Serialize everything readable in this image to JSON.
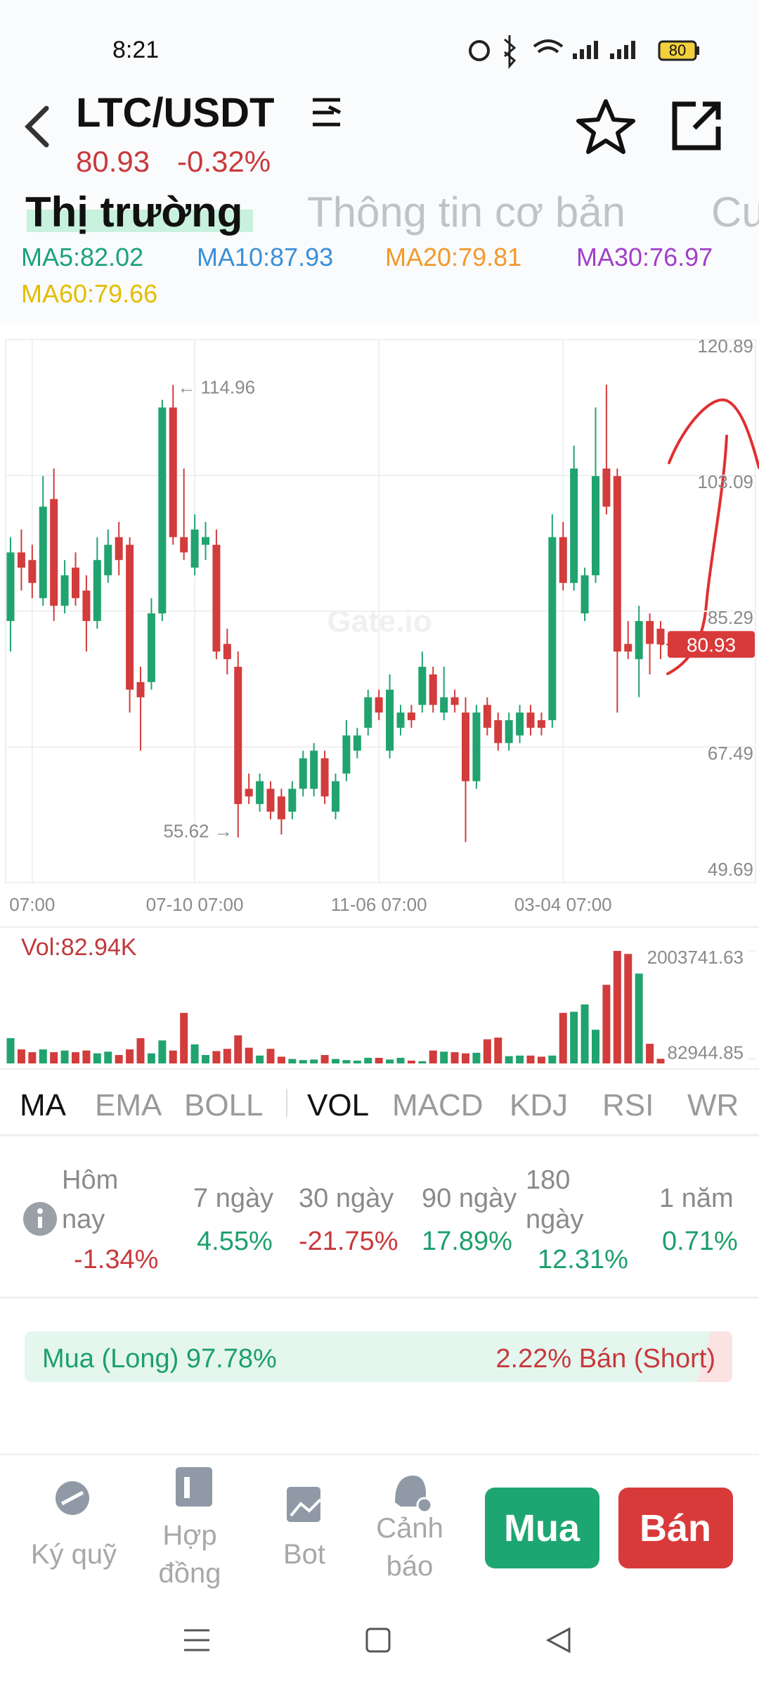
{
  "status": {
    "time": "8:21",
    "battery": "80"
  },
  "header": {
    "pair": "LTC/USDT",
    "price": "80.93",
    "change": "-0.32%"
  },
  "tabs": [
    "Thị trường",
    "Thông tin cơ bản",
    "Cu"
  ],
  "ma_legend": [
    {
      "text": "MA5:82.02",
      "color": "#1aa37a"
    },
    {
      "text": "MA10:87.93",
      "color": "#3a8fd8"
    },
    {
      "text": "MA20:79.81",
      "color": "#f09a2a"
    },
    {
      "text": "MA30:76.97",
      "color": "#a040c8"
    },
    {
      "text": "MA60:79.66",
      "color": "#e2bd00"
    }
  ],
  "chart_data": {
    "type": "candlestick",
    "watermark": "Gate.io",
    "ylim": [
      49.69,
      120.89
    ],
    "yticks": [
      49.69,
      67.49,
      85.29,
      103.09,
      120.89
    ],
    "grid": true,
    "up_color": "#21a36f",
    "down_color": "#d23c3c",
    "categories": [
      null,
      null,
      "07:00",
      null,
      null,
      null,
      null,
      null,
      null,
      null,
      null,
      null,
      null,
      null,
      null,
      null,
      null,
      "07-10 07:00",
      null,
      null,
      null,
      null,
      null,
      null,
      null,
      null,
      null,
      null,
      null,
      null,
      null,
      null,
      null,
      null,
      "11-06 07:00",
      null,
      null,
      null,
      null,
      null,
      null,
      null,
      null,
      null,
      null,
      null,
      null,
      null,
      null,
      null,
      null,
      "03-04 07:00",
      null,
      null,
      null,
      null,
      null,
      null,
      null,
      null,
      null
    ],
    "open": [
      84,
      93,
      92,
      87,
      100,
      86,
      91,
      88,
      84,
      90,
      95,
      94,
      76,
      76,
      85,
      112,
      95,
      91,
      94,
      94,
      81,
      78,
      62,
      60,
      62,
      61,
      59,
      62,
      62,
      66,
      59,
      64,
      67,
      70,
      74,
      67,
      70,
      72,
      73,
      77,
      72,
      74,
      72,
      63,
      73,
      71,
      68,
      69,
      72,
      71,
      71,
      95,
      89,
      85,
      90,
      104,
      103,
      81,
      79,
      84,
      83
    ],
    "high": [
      95,
      96,
      94,
      103,
      104,
      92,
      93,
      90,
      95,
      96,
      97,
      95,
      78,
      87,
      113,
      114.96,
      104,
      98,
      97,
      96,
      83,
      80,
      64,
      64,
      63,
      62,
      63,
      67,
      68,
      67,
      64,
      71,
      70,
      75,
      75,
      77,
      73,
      73,
      80,
      78,
      78,
      75,
      74,
      73,
      74,
      72,
      72,
      73,
      73,
      72,
      98,
      97,
      107,
      91,
      112,
      115,
      104,
      84,
      86,
      85,
      84
    ],
    "low": [
      80,
      88,
      87,
      86,
      84,
      85,
      86,
      80,
      83,
      89,
      90,
      72,
      67,
      75,
      84,
      94,
      92,
      90,
      92,
      79,
      77,
      55.62,
      60,
      59,
      58,
      56,
      58,
      61,
      61,
      60,
      58,
      63,
      66,
      69,
      71,
      66,
      69,
      70,
      72,
      72,
      71,
      72,
      55,
      62,
      69,
      67,
      67,
      68,
      69,
      69,
      70,
      88,
      88,
      84,
      89,
      98,
      72,
      79,
      74,
      77,
      79
    ],
    "close": [
      93,
      91,
      89,
      99,
      86,
      90,
      87,
      84,
      92,
      94,
      92,
      75,
      74,
      85,
      112,
      95,
      93,
      96,
      95,
      80,
      79,
      60,
      61,
      63,
      59,
      58,
      62,
      66,
      67,
      61,
      63,
      69,
      69,
      74,
      72,
      75,
      72,
      71,
      78,
      73,
      74,
      73,
      63,
      72,
      70,
      68,
      71,
      72,
      70,
      70,
      95,
      89,
      104,
      90,
      103,
      99,
      80,
      80,
      84,
      81,
      80.93
    ],
    "annotations": [
      {
        "index": 15,
        "label": "← 114.96"
      },
      {
        "index": 21,
        "label": "55.62 →"
      }
    ],
    "last_price": "80.93",
    "volume": {
      "label": "Vol:82.94K",
      "ylim": [
        0,
        2003741.63
      ],
      "yticks": [
        82944.85,
        2003741.63
      ],
      "values": [
        450000,
        250000,
        200000,
        250000,
        200000,
        230000,
        200000,
        230000,
        180000,
        210000,
        150000,
        250000,
        450000,
        180000,
        410000,
        230000,
        900000,
        340000,
        150000,
        220000,
        260000,
        500000,
        280000,
        140000,
        260000,
        120000,
        80000,
        60000,
        70000,
        150000,
        80000,
        60000,
        50000,
        100000,
        100000,
        70000,
        100000,
        50000,
        40000,
        230000,
        210000,
        200000,
        180000,
        190000,
        430000,
        460000,
        130000,
        140000,
        140000,
        120000,
        140000,
        900000,
        920000,
        1050000,
        600000,
        1400000,
        2003741.63,
        1950000,
        1600000,
        350000,
        82944.85
      ]
    }
  },
  "indicators": {
    "main": [
      "MA",
      "EMA",
      "BOLL"
    ],
    "sub": [
      "VOL",
      "MACD",
      "KDJ",
      "RSI",
      "WR"
    ]
  },
  "performance": [
    {
      "label": "Hôm nay",
      "value": "-1.34%"
    },
    {
      "label": "7 ngày",
      "value": "4.55%"
    },
    {
      "label": "30 ngày",
      "value": "-21.75%"
    },
    {
      "label": "90 ngày",
      "value": "17.89%"
    },
    {
      "label": "180 ngày",
      "value": "12.31%"
    },
    {
      "label": "1 năm",
      "value": "0.71%"
    }
  ],
  "long_short": {
    "long": "Mua (Long) 97.78%",
    "short": "2.22% Bán (Short)"
  },
  "bottom_nav": [
    "Ký quỹ",
    "Hợp đồng",
    "Bot",
    "Cảnh báo"
  ],
  "actions": {
    "buy": "Mua",
    "sell": "Bán"
  }
}
